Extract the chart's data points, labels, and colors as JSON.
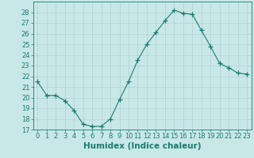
{
  "x": [
    0,
    1,
    2,
    3,
    4,
    5,
    6,
    7,
    8,
    9,
    10,
    11,
    12,
    13,
    14,
    15,
    16,
    17,
    18,
    19,
    20,
    21,
    22,
    23
  ],
  "y": [
    21.5,
    20.2,
    20.2,
    19.7,
    18.8,
    17.5,
    17.3,
    17.3,
    18.0,
    19.8,
    21.5,
    23.5,
    25.0,
    26.1,
    27.2,
    28.2,
    27.9,
    27.8,
    26.3,
    24.8,
    23.2,
    22.8,
    22.3,
    22.2
  ],
  "line_color": "#1a7a6e",
  "marker_color": "#1a7a6e",
  "bg_color": "#c8e8e8",
  "grid_color": "#b0d0d0",
  "xlabel": "Humidex (Indice chaleur)",
  "xlim": [
    -0.5,
    23.5
  ],
  "ylim": [
    17,
    29
  ],
  "yticks": [
    17,
    18,
    19,
    20,
    21,
    22,
    23,
    24,
    25,
    26,
    27,
    28
  ],
  "xticks": [
    0,
    1,
    2,
    3,
    4,
    5,
    6,
    7,
    8,
    9,
    10,
    11,
    12,
    13,
    14,
    15,
    16,
    17,
    18,
    19,
    20,
    21,
    22,
    23
  ],
  "tick_label_fontsize": 6,
  "xlabel_fontsize": 7.5
}
